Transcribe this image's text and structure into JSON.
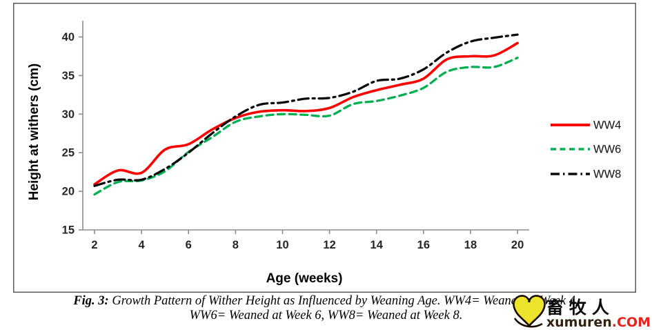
{
  "caption": {
    "fig_label": "Fig. 3:",
    "line1": "Growth Pattern of Wither Height as Influenced by Weaning Age. WW4= Weaned at Week 4,",
    "line2": "WW6= Weaned at Week 6, WW8= Weaned at Week 8."
  },
  "watermark": {
    "cjk": "畜牧人",
    "domain": "xumuren",
    "tld": ".COM"
  },
  "colors": {
    "ww4": "#fe0000",
    "ww6": "#00b050",
    "ww8": "#0a0a0a",
    "axis": "#8c8c8c",
    "figure_border": "#4d4d4d",
    "tick_text": "#262626"
  },
  "chart_data": {
    "type": "line",
    "title": "",
    "xlabel": "Age (weeks)",
    "ylabel": "Height at withers (cm)",
    "x": [
      2,
      3,
      4,
      5,
      6,
      7,
      8,
      9,
      10,
      11,
      12,
      13,
      14,
      15,
      16,
      17,
      18,
      19,
      20
    ],
    "x_ticks": [
      2,
      4,
      6,
      8,
      10,
      12,
      14,
      16,
      18,
      20
    ],
    "y_ticks": [
      15,
      20,
      25,
      30,
      35,
      40
    ],
    "xlim": [
      2,
      20
    ],
    "ylim": [
      15,
      40
    ],
    "grid": false,
    "legend_position": "right",
    "series": [
      {
        "name": "WW4",
        "color": "#fe0000",
        "style": "solid",
        "values": [
          20.9,
          22.7,
          22.4,
          25.4,
          26.1,
          28.0,
          29.5,
          30.3,
          30.5,
          30.4,
          30.8,
          32.2,
          33.1,
          33.8,
          34.6,
          37.1,
          37.5,
          37.6,
          39.2
        ]
      },
      {
        "name": "WW6",
        "color": "#00b050",
        "style": "dashed",
        "values": [
          19.6,
          21.2,
          21.4,
          22.6,
          25.1,
          27.0,
          29.0,
          29.7,
          30.0,
          29.9,
          29.8,
          31.3,
          31.7,
          32.4,
          33.4,
          35.5,
          36.1,
          36.1,
          37.3
        ]
      },
      {
        "name": "WW8",
        "color": "#0a0a0a",
        "style": "dashdot",
        "values": [
          20.7,
          21.5,
          21.5,
          22.9,
          25.0,
          27.5,
          29.7,
          31.2,
          31.5,
          32.0,
          32.1,
          32.9,
          34.3,
          34.6,
          35.8,
          38.0,
          39.4,
          39.9,
          40.3
        ]
      }
    ]
  }
}
